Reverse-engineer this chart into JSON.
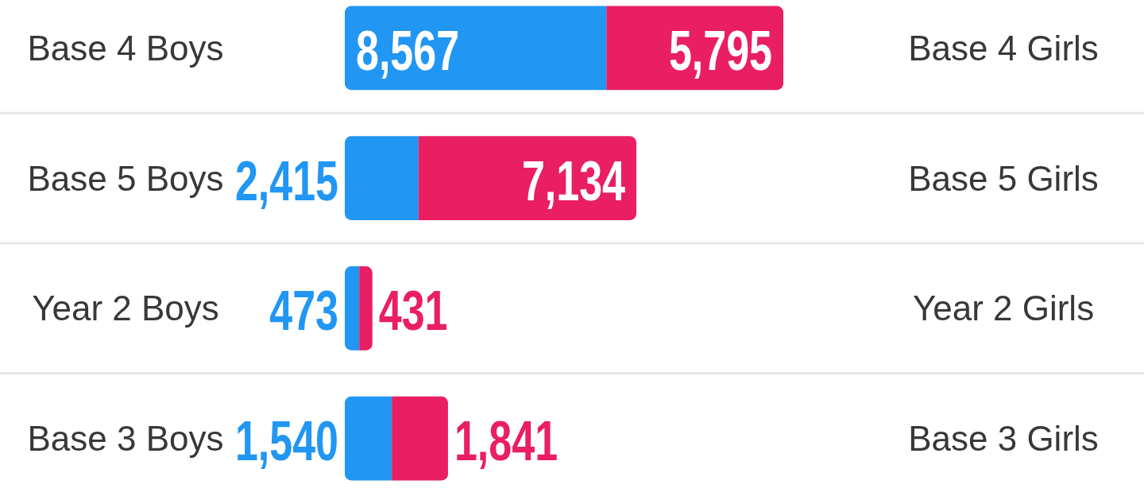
{
  "chart_data": {
    "type": "bar",
    "orientation": "horizontal",
    "stacked": true,
    "categories": [
      "Base 4 Boys",
      "Base 5 Boys",
      "Year 2 Boys",
      "Base 3 Boys"
    ],
    "y2_categories": [
      "Base 4 Girls",
      "Base 5 Girls",
      "Year 2 Girls",
      "Base 3 Girls"
    ],
    "series": [
      {
        "color": "#2196f3",
        "values": [
          8567,
          2415,
          473,
          1540
        ],
        "value_labels": [
          "8,567",
          "2,415",
          "473",
          "1,540"
        ]
      },
      {
        "color": "#e91e63",
        "values": [
          5795,
          7134,
          431,
          1841
        ],
        "value_labels": [
          "5,795",
          "7,134",
          "431",
          "1,841"
        ]
      }
    ],
    "grid": "y"
  }
}
